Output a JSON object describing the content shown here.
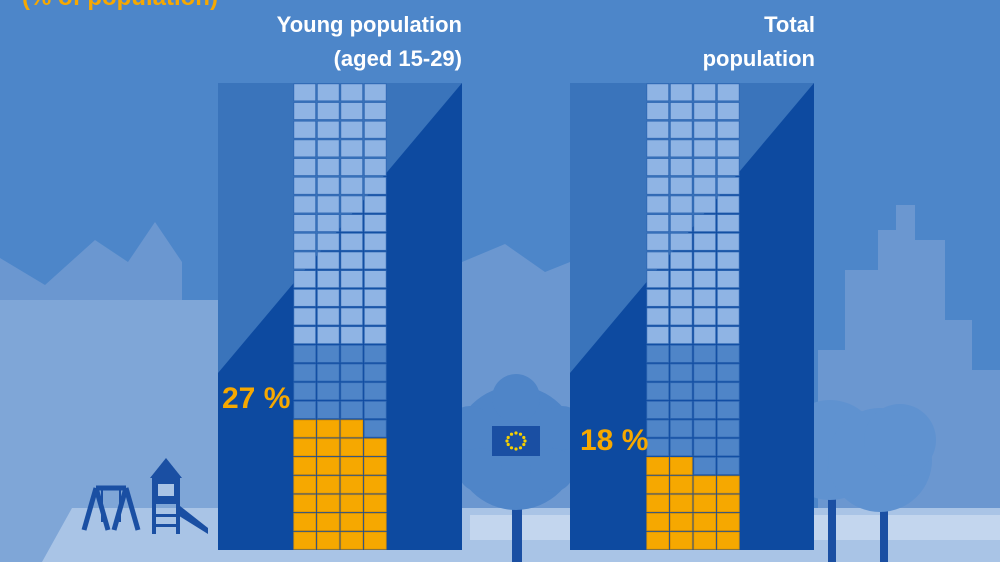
{
  "header": {
    "clipped_banner": "(% of population)"
  },
  "columns": [
    {
      "label_line1": "Young population",
      "label_line2": "(aged 15-29)",
      "value_text": "27 %"
    },
    {
      "label_line1": "Total",
      "label_line2": "population",
      "value_text": "18 %"
    }
  ],
  "colors": {
    "background": "#4d86c9",
    "skyline_light": "#7fa6d7",
    "skyline_mid": "#6b97d0",
    "panel_light": "#3a74bb",
    "panel_dark": "#0d4aa0",
    "grid_cell": "#8fb4e4",
    "grid_cell_dim": "#4f85c8",
    "highlight": "#f6a800",
    "ground": "#a9c4e6",
    "eu_blue": "#1a4fa3",
    "eu_star": "#f6d000"
  },
  "chart_data": {
    "type": "waffle",
    "title": "(% of population)",
    "categories": [
      "Young population (aged 15-29)",
      "Total population"
    ],
    "values": [
      27,
      18
    ],
    "unit": "%",
    "grid": {
      "rows": 25,
      "cols": 4
    }
  }
}
